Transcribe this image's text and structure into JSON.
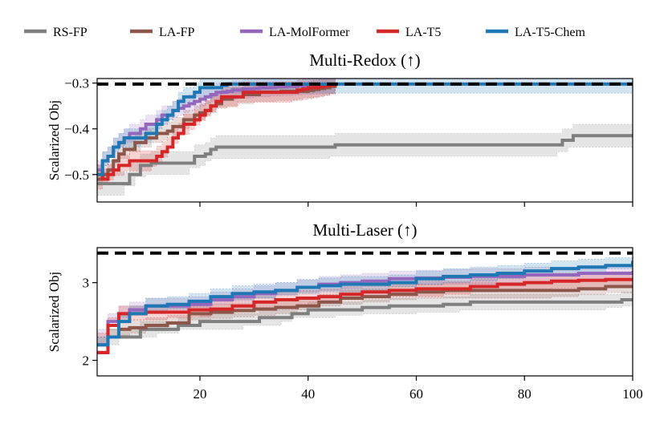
{
  "legend": [
    {
      "name": "RS-FP",
      "color": "#7f7f7f"
    },
    {
      "name": "LA-FP",
      "color": "#8c564b"
    },
    {
      "name": "LA-MolFormer",
      "color": "#9467bd"
    },
    {
      "name": "LA-T5",
      "color": "#d62728"
    },
    {
      "name": "LA-T5-Chem",
      "color": "#1f77b4"
    }
  ],
  "chart_data": [
    {
      "type": "line",
      "title": "Multi-Redox (↑)",
      "ylabel": "Scalarized Obj",
      "xlabel": "",
      "xlim": [
        1,
        100
      ],
      "ylim": [
        -0.56,
        -0.29
      ],
      "yticks": [
        -0.3,
        -0.4,
        -0.5
      ],
      "yticklabels": [
        "−0.3",
        "−0.4",
        "−0.5"
      ],
      "xticks": [
        20,
        40,
        60,
        80,
        100
      ],
      "xticklabels": [],
      "reference_line": -0.302,
      "series": [
        {
          "name": "RS-FP",
          "color": "#7f7f7f",
          "band": 0.025,
          "x": [
            1,
            2,
            3,
            4,
            5,
            6,
            7,
            8,
            9,
            10,
            11,
            12,
            13,
            14,
            15,
            16,
            17,
            18,
            19,
            20,
            21,
            22,
            23,
            24,
            25,
            26,
            27,
            28,
            29,
            30,
            31,
            32,
            33,
            34,
            35,
            36,
            37,
            38,
            39,
            40,
            41,
            42,
            43,
            44,
            45,
            46,
            47,
            48,
            49,
            50,
            51,
            52,
            53,
            54,
            55,
            56,
            57,
            58,
            59,
            60,
            61,
            62,
            63,
            64,
            65,
            66,
            67,
            68,
            69,
            70,
            71,
            72,
            73,
            74,
            75,
            76,
            77,
            78,
            79,
            80,
            81,
            82,
            83,
            84,
            85,
            86,
            87,
            88,
            89,
            90,
            91,
            92,
            93,
            94,
            95,
            96,
            97,
            98,
            99,
            100
          ],
          "y": [
            -0.52,
            -0.52,
            -0.52,
            -0.52,
            -0.52,
            -0.52,
            -0.5,
            -0.5,
            -0.48,
            -0.48,
            -0.475,
            -0.475,
            -0.475,
            -0.475,
            -0.475,
            -0.475,
            -0.475,
            -0.475,
            -0.46,
            -0.46,
            -0.455,
            -0.445,
            -0.44,
            -0.44,
            -0.44,
            -0.44,
            -0.44,
            -0.44,
            -0.44,
            -0.44,
            -0.44,
            -0.44,
            -0.44,
            -0.44,
            -0.44,
            -0.44,
            -0.44,
            -0.44,
            -0.44,
            -0.44,
            -0.44,
            -0.44,
            -0.44,
            -0.44,
            -0.435,
            -0.435,
            -0.435,
            -0.435,
            -0.435,
            -0.435,
            -0.435,
            -0.435,
            -0.435,
            -0.435,
            -0.435,
            -0.435,
            -0.435,
            -0.435,
            -0.435,
            -0.435,
            -0.435,
            -0.435,
            -0.435,
            -0.435,
            -0.435,
            -0.435,
            -0.435,
            -0.435,
            -0.435,
            -0.435,
            -0.435,
            -0.435,
            -0.435,
            -0.435,
            -0.435,
            -0.435,
            -0.435,
            -0.435,
            -0.435,
            -0.435,
            -0.435,
            -0.435,
            -0.435,
            -0.435,
            -0.435,
            -0.435,
            -0.425,
            -0.425,
            -0.415,
            -0.415,
            -0.415,
            -0.415,
            -0.415,
            -0.415,
            -0.415,
            -0.415,
            -0.415,
            -0.415,
            -0.415,
            -0.415
          ]
        },
        {
          "name": "LA-FP",
          "color": "#8c564b",
          "band": 0.02,
          "x": [
            1,
            2,
            3,
            4,
            5,
            6,
            7,
            8,
            9,
            10,
            11,
            12,
            13,
            14,
            15,
            16,
            17,
            18,
            19,
            20,
            21,
            22,
            23,
            24,
            25,
            26,
            27,
            28,
            29,
            30,
            31,
            32,
            33,
            34,
            35,
            36,
            37,
            38,
            39,
            40,
            41,
            42,
            43,
            44,
            45
          ],
          "y": [
            -0.51,
            -0.5,
            -0.49,
            -0.47,
            -0.455,
            -0.445,
            -0.445,
            -0.43,
            -0.43,
            -0.42,
            -0.42,
            -0.41,
            -0.41,
            -0.405,
            -0.395,
            -0.395,
            -0.38,
            -0.38,
            -0.37,
            -0.365,
            -0.36,
            -0.35,
            -0.345,
            -0.335,
            -0.335,
            -0.33,
            -0.33,
            -0.325,
            -0.325,
            -0.325,
            -0.32,
            -0.32,
            -0.32,
            -0.32,
            -0.318,
            -0.318,
            -0.318,
            -0.318,
            -0.318,
            -0.316,
            -0.314,
            -0.312,
            -0.31,
            -0.307,
            -0.303
          ]
        },
        {
          "name": "LA-MolFormer",
          "color": "#9467bd",
          "band": 0.02,
          "x": [
            1,
            2,
            3,
            4,
            5,
            6,
            7,
            8,
            9,
            10,
            11,
            12,
            13,
            14,
            15,
            16,
            17,
            18,
            19,
            20,
            21,
            22,
            23,
            24,
            25,
            26,
            27,
            28,
            29,
            30,
            31,
            32,
            33,
            34,
            35,
            36,
            37,
            38,
            39,
            40,
            41,
            42,
            43,
            44,
            45
          ],
          "y": [
            -0.49,
            -0.47,
            -0.46,
            -0.44,
            -0.43,
            -0.42,
            -0.41,
            -0.41,
            -0.4,
            -0.39,
            -0.39,
            -0.38,
            -0.37,
            -0.37,
            -0.36,
            -0.355,
            -0.35,
            -0.345,
            -0.34,
            -0.335,
            -0.33,
            -0.325,
            -0.32,
            -0.32,
            -0.318,
            -0.315,
            -0.315,
            -0.313,
            -0.313,
            -0.312,
            -0.31,
            -0.31,
            -0.31,
            -0.308,
            -0.308,
            -0.307,
            -0.307,
            -0.306,
            -0.306,
            -0.305,
            -0.305,
            -0.304,
            -0.304,
            -0.303,
            -0.303
          ]
        },
        {
          "name": "LA-T5",
          "color": "#d62728",
          "band": 0.022,
          "x": [
            1,
            2,
            3,
            4,
            5,
            6,
            7,
            8,
            9,
            10,
            11,
            12,
            13,
            14,
            15,
            16,
            17,
            18,
            19,
            20,
            21,
            22,
            23,
            24,
            25,
            26,
            27,
            28,
            29,
            30,
            31,
            32,
            33,
            34,
            35,
            36,
            37,
            38,
            39,
            40,
            41,
            42,
            43,
            44,
            45
          ],
          "y": [
            -0.5,
            -0.51,
            -0.5,
            -0.49,
            -0.48,
            -0.48,
            -0.47,
            -0.47,
            -0.47,
            -0.47,
            -0.47,
            -0.46,
            -0.45,
            -0.44,
            -0.42,
            -0.41,
            -0.39,
            -0.39,
            -0.38,
            -0.37,
            -0.36,
            -0.35,
            -0.34,
            -0.33,
            -0.33,
            -0.33,
            -0.33,
            -0.32,
            -0.32,
            -0.32,
            -0.32,
            -0.32,
            -0.32,
            -0.32,
            -0.32,
            -0.32,
            -0.32,
            -0.315,
            -0.313,
            -0.31,
            -0.31,
            -0.308,
            -0.306,
            -0.304,
            -0.302
          ]
        },
        {
          "name": "LA-T5-Chem",
          "color": "#1f77b4",
          "band": 0.02,
          "x": [
            1,
            2,
            3,
            4,
            5,
            6,
            7,
            8,
            9,
            10,
            11,
            12,
            13,
            14,
            15,
            16,
            17,
            18,
            19,
            20,
            21,
            22,
            23,
            24,
            25,
            26,
            27,
            28,
            29,
            30,
            31,
            32,
            33,
            34,
            35,
            36,
            37,
            38,
            39,
            40,
            41,
            42,
            43,
            44,
            45,
            46,
            47,
            48,
            49,
            50,
            51,
            52,
            53,
            54,
            55,
            56,
            57,
            58,
            59,
            60,
            61,
            62,
            63,
            64,
            65,
            66,
            67,
            68,
            69,
            70,
            71,
            72,
            73,
            74,
            75,
            76,
            77,
            78,
            79,
            80,
            81,
            82,
            83,
            84,
            85,
            86,
            87,
            88,
            89,
            90,
            91,
            92,
            93,
            94,
            95,
            96,
            97,
            98,
            99,
            100
          ],
          "y": [
            -0.5,
            -0.47,
            -0.46,
            -0.44,
            -0.43,
            -0.42,
            -0.42,
            -0.42,
            -0.42,
            -0.41,
            -0.41,
            -0.39,
            -0.38,
            -0.37,
            -0.36,
            -0.34,
            -0.33,
            -0.33,
            -0.32,
            -0.31,
            -0.31,
            -0.31,
            -0.31,
            -0.305,
            -0.302,
            -0.302,
            -0.302,
            -0.302,
            -0.302,
            -0.302,
            -0.302,
            -0.302,
            -0.302,
            -0.302,
            -0.302,
            -0.302,
            -0.302,
            -0.302,
            -0.302,
            -0.302,
            -0.302,
            -0.302,
            -0.302,
            -0.302,
            -0.302,
            -0.302,
            -0.302,
            -0.302,
            -0.302,
            -0.302,
            -0.302,
            -0.302,
            -0.302,
            -0.302,
            -0.302,
            -0.302,
            -0.302,
            -0.302,
            -0.302,
            -0.302,
            -0.302,
            -0.302,
            -0.302,
            -0.302,
            -0.302,
            -0.302,
            -0.302,
            -0.302,
            -0.302,
            -0.302,
            -0.302,
            -0.302,
            -0.302,
            -0.302,
            -0.302,
            -0.302,
            -0.302,
            -0.302,
            -0.302,
            -0.302,
            -0.302,
            -0.302,
            -0.302,
            -0.302,
            -0.302,
            -0.302,
            -0.302,
            -0.302,
            -0.302,
            -0.302,
            -0.302,
            -0.302,
            -0.302,
            -0.302,
            -0.302,
            -0.302,
            -0.302,
            -0.302,
            -0.302,
            -0.302
          ]
        }
      ]
    },
    {
      "type": "line",
      "title": "Multi-Laser (↑)",
      "ylabel": "Scalarized Obj",
      "xlabel": "",
      "xlim": [
        1,
        100
      ],
      "ylim": [
        1.8,
        3.45
      ],
      "yticks": [
        2,
        3
      ],
      "yticklabels": [
        "2",
        "3"
      ],
      "xticks": [
        20,
        40,
        60,
        80,
        100
      ],
      "xticklabels": [
        "20",
        "40",
        "60",
        "80",
        "100"
      ],
      "reference_line": 3.38,
      "series": [
        {
          "name": "RS-FP",
          "color": "#7f7f7f",
          "band": 0.1,
          "x": [
            1,
            3,
            5,
            9,
            12,
            16,
            20,
            25,
            28,
            31,
            35,
            37,
            40,
            45,
            50,
            55,
            60,
            65,
            68,
            70,
            75,
            80,
            85,
            90,
            95,
            98,
            100
          ],
          "y": [
            2.2,
            2.3,
            2.3,
            2.4,
            2.4,
            2.45,
            2.5,
            2.5,
            2.5,
            2.55,
            2.55,
            2.6,
            2.65,
            2.65,
            2.68,
            2.7,
            2.7,
            2.72,
            2.72,
            2.75,
            2.75,
            2.75,
            2.75,
            2.75,
            2.75,
            2.78,
            2.8
          ]
        },
        {
          "name": "LA-FP",
          "color": "#8c564b",
          "band": 0.1,
          "x": [
            1,
            3,
            5,
            7,
            10,
            14,
            18,
            22,
            26,
            30,
            34,
            38,
            42,
            46,
            50,
            55,
            60,
            65,
            70,
            75,
            80,
            85,
            90,
            95,
            100
          ],
          "y": [
            2.1,
            2.3,
            2.4,
            2.42,
            2.45,
            2.48,
            2.6,
            2.62,
            2.64,
            2.66,
            2.68,
            2.7,
            2.75,
            2.8,
            2.82,
            2.85,
            2.88,
            2.9,
            2.9,
            2.9,
            2.9,
            2.9,
            2.92,
            2.95,
            2.97
          ]
        },
        {
          "name": "LA-MolFormer",
          "color": "#9467bd",
          "band": 0.1,
          "x": [
            1,
            3,
            5,
            7,
            10,
            14,
            18,
            22,
            26,
            30,
            34,
            38,
            42,
            46,
            50,
            55,
            60,
            65,
            70,
            75,
            80,
            85,
            90,
            95,
            100
          ],
          "y": [
            2.2,
            2.5,
            2.6,
            2.65,
            2.7,
            2.7,
            2.72,
            2.78,
            2.82,
            2.86,
            2.9,
            2.94,
            2.98,
            3.0,
            3.02,
            3.05,
            3.06,
            3.07,
            3.08,
            3.08,
            3.1,
            3.1,
            3.12,
            3.12,
            3.15
          ]
        },
        {
          "name": "LA-T5",
          "color": "#d62728",
          "band": 0.1,
          "x": [
            1,
            3,
            5,
            7,
            10,
            14,
            18,
            22,
            26,
            30,
            34,
            38,
            42,
            46,
            50,
            55,
            60,
            65,
            70,
            75,
            80,
            85,
            90,
            95,
            100
          ],
          "y": [
            2.1,
            2.45,
            2.6,
            2.6,
            2.62,
            2.62,
            2.65,
            2.66,
            2.7,
            2.75,
            2.78,
            2.8,
            2.82,
            2.85,
            2.88,
            2.9,
            2.92,
            2.92,
            2.95,
            2.98,
            3.0,
            3.02,
            3.03,
            3.04,
            3.05
          ]
        },
        {
          "name": "LA-T5-Chem",
          "color": "#1f77b4",
          "band": 0.1,
          "x": [
            1,
            3,
            5,
            7,
            10,
            14,
            18,
            22,
            26,
            30,
            34,
            38,
            42,
            46,
            50,
            55,
            60,
            65,
            70,
            75,
            80,
            85,
            90,
            95,
            100
          ],
          "y": [
            2.2,
            2.3,
            2.5,
            2.6,
            2.7,
            2.72,
            2.76,
            2.82,
            2.86,
            2.88,
            2.9,
            2.94,
            2.96,
            2.98,
            2.98,
            3.0,
            3.05,
            3.08,
            3.1,
            3.12,
            3.15,
            3.18,
            3.2,
            3.22,
            3.28
          ]
        }
      ]
    }
  ]
}
